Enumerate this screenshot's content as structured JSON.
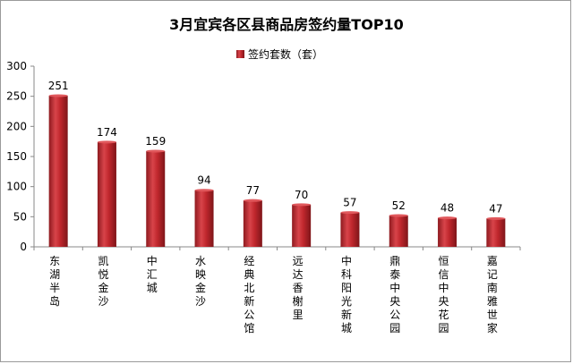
{
  "chart_data": {
    "type": "bar",
    "title": "3月宜宾各区县商品房签约量TOP10",
    "legend": [
      "签约套数（套）"
    ],
    "legend_position": "top",
    "categories": [
      "东湖半岛",
      "凯悦金沙",
      "中汇城",
      "水映金沙",
      "经典北新公馆",
      "远达香榭里",
      "中科阳光新城",
      "鼎泰中央公园",
      "恒信中央花园",
      "嘉记南雅世家"
    ],
    "series": [
      {
        "name": "签约套数（套）",
        "values": [
          251,
          174,
          159,
          94,
          77,
          70,
          57,
          52,
          48,
          47
        ]
      }
    ],
    "yticks": [
      0,
      50,
      100,
      150,
      200,
      250,
      300
    ],
    "ylim": [
      0,
      300
    ],
    "grid": false,
    "colors": {
      "bar": "#c0272d",
      "bar_dark": "#8e1a1f",
      "bar_light": "#e0585c",
      "axis": "#888888"
    }
  }
}
